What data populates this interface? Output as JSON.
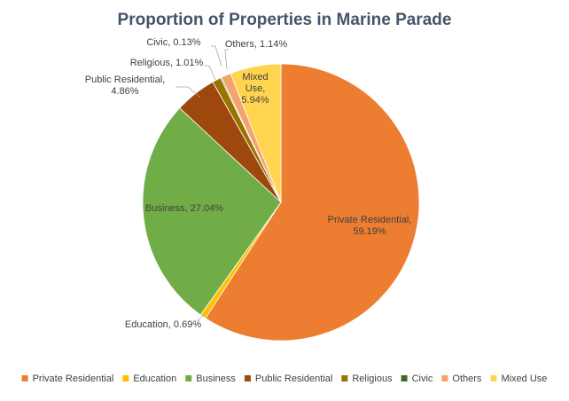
{
  "chart_data": {
    "type": "pie",
    "title": "Proportion of Properties in Marine Parade",
    "legend_position": "bottom",
    "slices": [
      {
        "name": "Private Residential",
        "value": 59.19,
        "label": [
          "Private Residential,",
          "59.19%"
        ],
        "color": "#ed7d31"
      },
      {
        "name": "Education",
        "value": 0.69,
        "label": [
          "Education, 0.69%"
        ],
        "color": "#ffc000"
      },
      {
        "name": "Business",
        "value": 27.04,
        "label": [
          "Business, 27.04%"
        ],
        "color": "#70ad47"
      },
      {
        "name": "Public Residential",
        "value": 4.86,
        "label": [
          "Public Residential,",
          "4.86%"
        ],
        "color": "#9e480e"
      },
      {
        "name": "Religious",
        "value": 1.01,
        "label": [
          "Religious, 1.01%"
        ],
        "color": "#997300"
      },
      {
        "name": "Civic",
        "value": 0.13,
        "label": [
          "Civic, 0.13%"
        ],
        "color": "#43682b"
      },
      {
        "name": "Others",
        "value": 1.14,
        "label": [
          "Others, 1.14%"
        ],
        "color": "#f4a36d"
      },
      {
        "name": "Mixed Use",
        "value": 5.94,
        "label": [
          "Mixed",
          "Use,",
          "5.94%"
        ],
        "color": "#ffd54f"
      }
    ]
  }
}
